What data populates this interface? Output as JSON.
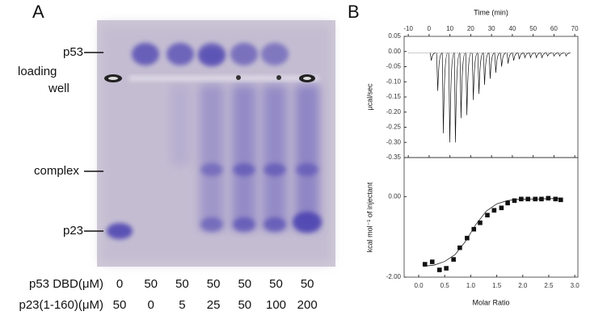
{
  "panel_a": {
    "label": "A",
    "band_labels": [
      "p53",
      "loading",
      "well",
      "complex",
      "p23"
    ],
    "conditions": [
      {
        "label": "p53 DBD(μM)",
        "values": [
          "0",
          "50",
          "50",
          "50",
          "50",
          "50",
          "50"
        ]
      },
      {
        "label": "p23(1-160)(μM)",
        "values": [
          "50",
          "0",
          "5",
          "25",
          "50",
          "100",
          "200"
        ]
      }
    ]
  },
  "panel_b": {
    "label": "B"
  },
  "chart_data": [
    {
      "type": "spike",
      "x_label": "Time (min)",
      "y_label": "μcal/sec",
      "baseline": -0.005,
      "x": [
        0.9,
        4.0,
        6.7,
        9.8,
        12.5,
        15.2,
        18.0,
        21.1,
        23.8,
        26.5,
        29.2,
        31.9,
        34.7,
        37.8,
        40.5,
        43.2,
        45.9,
        48.6,
        51.4,
        54.1,
        56.8,
        59.9,
        62.6,
        65.7
      ],
      "values": [
        -0.03,
        -0.13,
        -0.27,
        -0.3,
        -0.3,
        -0.22,
        -0.21,
        -0.16,
        -0.14,
        -0.11,
        -0.09,
        -0.07,
        -0.05,
        -0.04,
        -0.03,
        -0.025,
        -0.02,
        -0.02,
        -0.02,
        -0.02,
        -0.015,
        -0.015,
        -0.015,
        -0.015
      ],
      "xlim": [
        -12,
        71.5
      ],
      "ylim": [
        -0.35,
        0.05
      ],
      "xticks": [
        -10,
        0,
        10,
        20,
        30,
        40,
        50,
        60,
        70
      ],
      "yticks": [
        {
          "value": 0.05,
          "label": "0.05"
        },
        {
          "value": 0,
          "label": "0.00"
        },
        {
          "value": -0.05,
          "label": "-0.05"
        },
        {
          "value": -0.1,
          "label": "-0.10"
        },
        {
          "value": -0.15,
          "label": "-0.15"
        },
        {
          "value": -0.2,
          "label": "-0.20"
        },
        {
          "value": -0.25,
          "label": "-0.25"
        },
        {
          "value": -0.3,
          "label": "-0.30"
        },
        {
          "value": -0.35,
          "label": "-0.35"
        }
      ]
    },
    {
      "type": "scatter",
      "x_label": "Molar Ratio",
      "y_label": "kcal mol⁻¹ of injectant",
      "x": [
        0.12,
        0.26,
        0.4,
        0.53,
        0.67,
        0.79,
        0.93,
        1.06,
        1.18,
        1.32,
        1.45,
        1.59,
        1.71,
        1.84,
        1.97,
        2.1,
        2.24,
        2.36,
        2.49,
        2.63,
        2.73
      ],
      "values": [
        -1.68,
        -1.62,
        -1.82,
        -1.78,
        -1.56,
        -1.27,
        -1.03,
        -0.81,
        -0.65,
        -0.46,
        -0.34,
        -0.28,
        -0.16,
        -0.1,
        -0.06,
        -0.06,
        -0.06,
        -0.06,
        -0.04,
        -0.06,
        -0.08
      ],
      "fit": {
        "x": [
          0.1,
          0.3,
          0.5,
          0.7,
          0.9,
          1.1,
          1.3,
          1.5,
          1.7,
          1.9,
          2.1,
          2.3,
          2.5,
          2.7
        ],
        "values": [
          -1.73,
          -1.7,
          -1.61,
          -1.44,
          -1.11,
          -0.69,
          -0.36,
          -0.18,
          -0.1,
          -0.07,
          -0.06,
          -0.06,
          -0.05,
          -0.05
        ]
      },
      "xlim": [
        -0.28,
        3.06
      ],
      "ylim": [
        -2.0,
        0.97
      ],
      "xticks": [
        {
          "value": 0,
          "label": "0.0"
        },
        {
          "value": 0.5,
          "label": "0.5"
        },
        {
          "value": 1,
          "label": "1.0"
        },
        {
          "value": 1.5,
          "label": "1.5"
        },
        {
          "value": 2,
          "label": "2.0"
        },
        {
          "value": 2.5,
          "label": "2.5"
        },
        {
          "value": 3,
          "label": "3.0"
        }
      ],
      "yticks": [
        {
          "value": 0,
          "label": "0.00"
        },
        {
          "value": -2,
          "label": "-2.00"
        }
      ]
    }
  ]
}
